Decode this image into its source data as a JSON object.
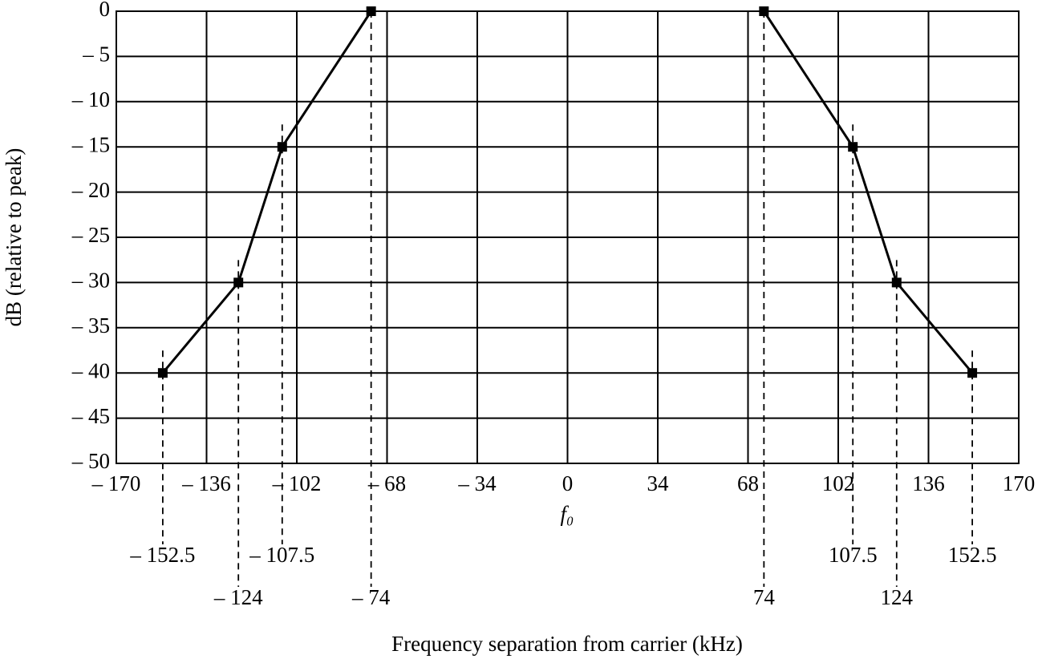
{
  "chart_data": {
    "type": "line",
    "ylabel": "dB (relative to peak)",
    "xlabel": "Frequency separation from carrier (kHz)",
    "center_label": "f₀",
    "color": "#000000",
    "grid": true,
    "series": [
      {
        "x": [
          -152.5,
          -124,
          -107.5,
          -74
        ],
        "values": [
          -40,
          -30,
          -15,
          0
        ]
      },
      {
        "x": [
          74,
          107.5,
          124,
          152.5
        ],
        "values": [
          0,
          -15,
          -30,
          -40
        ]
      }
    ],
    "xlim": [
      -170,
      170
    ],
    "ylim": [
      -50,
      0
    ],
    "xticks": [
      {
        "value": -170,
        "label": "– 170"
      },
      {
        "value": -136,
        "label": "– 136"
      },
      {
        "value": -102,
        "label": "– 102"
      },
      {
        "value": -68,
        "label": "– 68"
      },
      {
        "value": -34,
        "label": "– 34"
      },
      0,
      34,
      68,
      102,
      136,
      170
    ],
    "yticks": [
      0,
      {
        "value": -5,
        "label": "– 5"
      },
      {
        "value": -10,
        "label": "– 10"
      },
      {
        "value": -15,
        "label": "– 15"
      },
      {
        "value": -20,
        "label": "– 20"
      },
      {
        "value": -25,
        "label": "– 25"
      },
      {
        "value": -30,
        "label": "– 30"
      },
      {
        "value": -35,
        "label": "– 35"
      },
      {
        "value": -40,
        "label": "– 40"
      },
      {
        "value": -45,
        "label": "– 45"
      },
      {
        "value": -50,
        "label": "– 50"
      }
    ],
    "annotations": [
      {
        "value": -152.5,
        "label": "– 152.5"
      },
      {
        "value": -124,
        "label": "– 124"
      },
      {
        "value": -107.5,
        "label": "– 107.5"
      },
      {
        "value": -74,
        "label": "– 74"
      },
      {
        "value": 74,
        "label": "74"
      },
      {
        "value": 107.5,
        "label": "107.5"
      },
      {
        "value": 124,
        "label": "124"
      },
      {
        "value": 152.5,
        "label": "152.5"
      }
    ]
  }
}
